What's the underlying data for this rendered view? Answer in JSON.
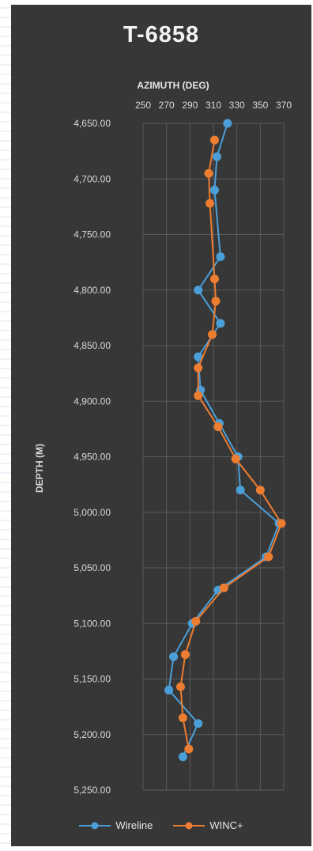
{
  "chart_data": {
    "type": "line",
    "title": "T-6858",
    "xlabel": "AZIMUTH (DEG)",
    "ylabel": "DEPTH (M)",
    "x_axis_position": "top",
    "y_axis_inverted": true,
    "xlim": [
      250,
      370
    ],
    "ylim": [
      4650,
      5250
    ],
    "x_ticks": [
      "250",
      "270",
      "290",
      "310",
      "330",
      "350",
      "370"
    ],
    "y_ticks": [
      "4,650.00",
      "4,700.00",
      "4,750.00",
      "4,800.00",
      "4,850.00",
      "4,900.00",
      "4,950.00",
      "5,000.00",
      "5,050.00",
      "5,100.00",
      "5,150.00",
      "5,200.00",
      "5,250.00"
    ],
    "grid": true,
    "legend_position": "bottom",
    "series": [
      {
        "name": "Wireline",
        "color": "#4b9fd8",
        "points": [
          {
            "x": 322,
            "y": 4650
          },
          {
            "x": 313,
            "y": 4680
          },
          {
            "x": 311,
            "y": 4710
          },
          {
            "x": 316,
            "y": 4770
          },
          {
            "x": 297,
            "y": 4800
          },
          {
            "x": 316,
            "y": 4830
          },
          {
            "x": 297,
            "y": 4860
          },
          {
            "x": 299,
            "y": 4890
          },
          {
            "x": 315,
            "y": 4920
          },
          {
            "x": 331,
            "y": 4950
          },
          {
            "x": 333,
            "y": 4980
          },
          {
            "x": 366,
            "y": 5010
          },
          {
            "x": 355,
            "y": 5040
          },
          {
            "x": 314,
            "y": 5070
          },
          {
            "x": 292,
            "y": 5100
          },
          {
            "x": 276,
            "y": 5130
          },
          {
            "x": 272,
            "y": 5160
          },
          {
            "x": 297,
            "y": 5190
          },
          {
            "x": 284,
            "y": 5220
          }
        ]
      },
      {
        "name": "WINC+",
        "color": "#ed7d31",
        "points": [
          {
            "x": 311,
            "y": 4665
          },
          {
            "x": 306,
            "y": 4695
          },
          {
            "x": 307,
            "y": 4722
          },
          {
            "x": 311,
            "y": 4790
          },
          {
            "x": 312,
            "y": 4810
          },
          {
            "x": 309,
            "y": 4840
          },
          {
            "x": 297,
            "y": 4870
          },
          {
            "x": 297,
            "y": 4895
          },
          {
            "x": 314,
            "y": 4923
          },
          {
            "x": 329,
            "y": 4952
          },
          {
            "x": 350,
            "y": 4980
          },
          {
            "x": 368,
            "y": 5010
          },
          {
            "x": 357,
            "y": 5040
          },
          {
            "x": 319,
            "y": 5068
          },
          {
            "x": 295,
            "y": 5098
          },
          {
            "x": 286,
            "y": 5128
          },
          {
            "x": 282,
            "y": 5157
          },
          {
            "x": 284,
            "y": 5185
          },
          {
            "x": 289,
            "y": 5213
          }
        ]
      }
    ]
  }
}
